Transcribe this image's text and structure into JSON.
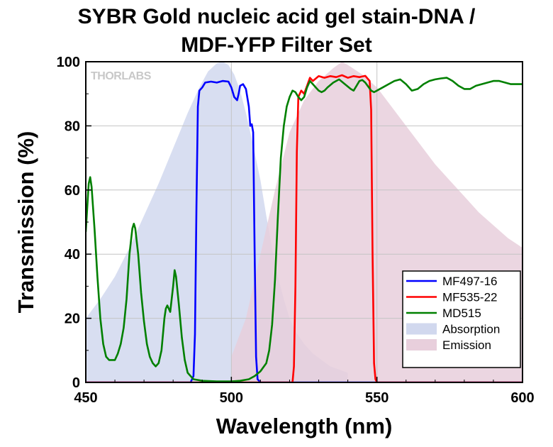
{
  "chart_data": {
    "type": "line",
    "title_lines": [
      "SYBR Gold nucleic acid gel stain-DNA /",
      "MDF-YFP Filter Set"
    ],
    "xlabel": "Wavelength (nm)",
    "ylabel": "Transmission (%)",
    "xlim": [
      450,
      600
    ],
    "ylim": [
      0,
      100
    ],
    "xticks": [
      450,
      500,
      550,
      600
    ],
    "yticks": [
      0,
      20,
      40,
      60,
      80,
      100
    ],
    "grid": true,
    "legend_position": "bottom-right",
    "brand": "THORLABS",
    "series": [
      {
        "name": "MF497-16",
        "kind": "line",
        "color": "#0000ff",
        "points": [
          [
            450,
            0
          ],
          [
            486,
            0
          ],
          [
            487,
            2
          ],
          [
            487.5,
            15
          ],
          [
            488,
            55
          ],
          [
            488.5,
            86
          ],
          [
            489,
            91
          ],
          [
            490,
            92
          ],
          [
            491,
            93.5
          ],
          [
            493,
            93.8
          ],
          [
            495,
            93.5
          ],
          [
            497,
            94
          ],
          [
            499,
            93.8
          ],
          [
            500,
            92
          ],
          [
            501,
            89
          ],
          [
            502,
            88
          ],
          [
            502.5,
            90
          ],
          [
            503,
            92.5
          ],
          [
            504,
            93
          ],
          [
            505,
            91.5
          ],
          [
            506,
            86
          ],
          [
            506.5,
            80
          ],
          [
            507,
            80.5
          ],
          [
            507.5,
            78
          ],
          [
            508,
            40
          ],
          [
            508.5,
            8
          ],
          [
            509,
            1
          ],
          [
            510,
            0
          ],
          [
            600,
            0
          ]
        ]
      },
      {
        "name": "MF535-22",
        "kind": "line",
        "color": "#ff0000",
        "points": [
          [
            450,
            0
          ],
          [
            521,
            0
          ],
          [
            521.5,
            5
          ],
          [
            522,
            30
          ],
          [
            522.5,
            72
          ],
          [
            523,
            89
          ],
          [
            524,
            91
          ],
          [
            525,
            90
          ],
          [
            526,
            92.5
          ],
          [
            527,
            95
          ],
          [
            528,
            94
          ],
          [
            530,
            95.5
          ],
          [
            532,
            95
          ],
          [
            534,
            95.5
          ],
          [
            536,
            95.2
          ],
          [
            538,
            95.8
          ],
          [
            540,
            95
          ],
          [
            542,
            95.5
          ],
          [
            544,
            95.2
          ],
          [
            546,
            95.6
          ],
          [
            547.5,
            94
          ],
          [
            548,
            85
          ],
          [
            548.5,
            40
          ],
          [
            549,
            6
          ],
          [
            549.5,
            1
          ],
          [
            550,
            0
          ],
          [
            600,
            0
          ]
        ]
      },
      {
        "name": "MD515",
        "kind": "line",
        "color": "#008000",
        "points": [
          [
            450,
            47
          ],
          [
            451,
            62
          ],
          [
            451.5,
            64
          ],
          [
            452,
            61
          ],
          [
            453,
            48
          ],
          [
            454,
            33
          ],
          [
            455,
            20
          ],
          [
            456,
            12
          ],
          [
            457,
            8
          ],
          [
            458,
            7
          ],
          [
            460,
            7
          ],
          [
            461,
            9
          ],
          [
            462,
            12
          ],
          [
            463,
            17
          ],
          [
            464,
            26
          ],
          [
            465,
            40
          ],
          [
            466,
            48
          ],
          [
            466.5,
            49.5
          ],
          [
            467,
            48
          ],
          [
            468,
            40
          ],
          [
            469,
            28
          ],
          [
            470,
            19
          ],
          [
            471,
            12
          ],
          [
            472,
            8
          ],
          [
            473,
            6
          ],
          [
            474,
            5
          ],
          [
            475,
            6
          ],
          [
            476,
            10
          ],
          [
            477,
            20
          ],
          [
            477.5,
            23
          ],
          [
            478,
            24
          ],
          [
            479,
            22
          ],
          [
            480,
            30
          ],
          [
            480.5,
            35
          ],
          [
            481,
            33
          ],
          [
            482,
            24
          ],
          [
            483,
            14
          ],
          [
            484,
            7
          ],
          [
            485,
            3
          ],
          [
            486,
            2
          ],
          [
            487,
            1
          ],
          [
            490,
            0.5
          ],
          [
            495,
            0.3
          ],
          [
            500,
            0.3
          ],
          [
            503,
            0.5
          ],
          [
            506,
            1
          ],
          [
            508,
            2
          ],
          [
            510,
            3.5
          ],
          [
            512,
            6
          ],
          [
            513,
            10
          ],
          [
            514,
            18
          ],
          [
            515,
            32
          ],
          [
            516,
            52
          ],
          [
            517,
            70
          ],
          [
            518,
            80
          ],
          [
            519,
            86
          ],
          [
            520,
            89
          ],
          [
            521,
            91
          ],
          [
            522,
            90.5
          ],
          [
            523,
            89
          ],
          [
            524,
            88
          ],
          [
            525,
            89
          ],
          [
            526,
            92
          ],
          [
            527,
            94
          ],
          [
            528,
            93
          ],
          [
            529,
            92
          ],
          [
            530,
            91
          ],
          [
            531,
            90.5
          ],
          [
            532,
            91
          ],
          [
            533,
            92
          ],
          [
            535,
            93.5
          ],
          [
            537,
            94.5
          ],
          [
            539,
            93
          ],
          [
            541,
            91.5
          ],
          [
            542,
            91
          ],
          [
            543,
            92.5
          ],
          [
            544,
            94
          ],
          [
            545,
            94.3
          ],
          [
            546,
            93.5
          ],
          [
            548,
            91
          ],
          [
            549,
            90.5
          ],
          [
            550,
            91
          ],
          [
            552,
            92
          ],
          [
            554,
            93
          ],
          [
            556,
            94
          ],
          [
            558,
            94.5
          ],
          [
            560,
            93
          ],
          [
            562,
            91
          ],
          [
            564,
            91.5
          ],
          [
            566,
            93
          ],
          [
            568,
            94
          ],
          [
            570,
            94.5
          ],
          [
            572,
            94.8
          ],
          [
            574,
            95
          ],
          [
            576,
            94
          ],
          [
            578,
            92.5
          ],
          [
            580,
            91.5
          ],
          [
            582,
            91.5
          ],
          [
            584,
            92.5
          ],
          [
            586,
            93
          ],
          [
            588,
            93.5
          ],
          [
            590,
            94
          ],
          [
            592,
            94
          ],
          [
            594,
            93.5
          ],
          [
            596,
            93
          ],
          [
            598,
            93
          ],
          [
            600,
            93
          ]
        ]
      },
      {
        "name": "Absorption",
        "kind": "area",
        "color": "#d1d8ee",
        "points": [
          [
            450,
            20
          ],
          [
            455,
            26
          ],
          [
            460,
            33
          ],
          [
            465,
            42
          ],
          [
            470,
            52
          ],
          [
            475,
            62
          ],
          [
            480,
            73
          ],
          [
            485,
            84
          ],
          [
            489,
            92
          ],
          [
            492,
            97
          ],
          [
            495,
            99.5
          ],
          [
            497,
            100
          ],
          [
            499,
            99
          ],
          [
            501,
            96
          ],
          [
            503,
            91
          ],
          [
            505,
            84
          ],
          [
            507,
            76
          ],
          [
            510,
            63
          ],
          [
            512,
            52
          ],
          [
            514,
            42
          ],
          [
            516,
            33
          ],
          [
            518,
            26
          ],
          [
            520,
            20
          ],
          [
            522,
            16
          ],
          [
            525,
            12
          ],
          [
            528,
            9
          ],
          [
            531,
            7
          ],
          [
            534,
            5
          ],
          [
            537,
            4
          ],
          [
            540,
            3
          ],
          [
            540,
            0
          ],
          [
            450,
            0
          ]
        ]
      },
      {
        "name": "Emission",
        "kind": "area",
        "color": "#e8cfdc",
        "points": [
          [
            500,
            0
          ],
          [
            500,
            8
          ],
          [
            505,
            20
          ],
          [
            510,
            40
          ],
          [
            515,
            60
          ],
          [
            520,
            78
          ],
          [
            525,
            88
          ],
          [
            530,
            94
          ],
          [
            535,
            98
          ],
          [
            538,
            100
          ],
          [
            540,
            99
          ],
          [
            545,
            96
          ],
          [
            550,
            92
          ],
          [
            555,
            86
          ],
          [
            560,
            80
          ],
          [
            565,
            74
          ],
          [
            570,
            68
          ],
          [
            575,
            63
          ],
          [
            580,
            58
          ],
          [
            585,
            53
          ],
          [
            590,
            49
          ],
          [
            595,
            45
          ],
          [
            600,
            42
          ],
          [
            600,
            0
          ]
        ]
      }
    ]
  }
}
